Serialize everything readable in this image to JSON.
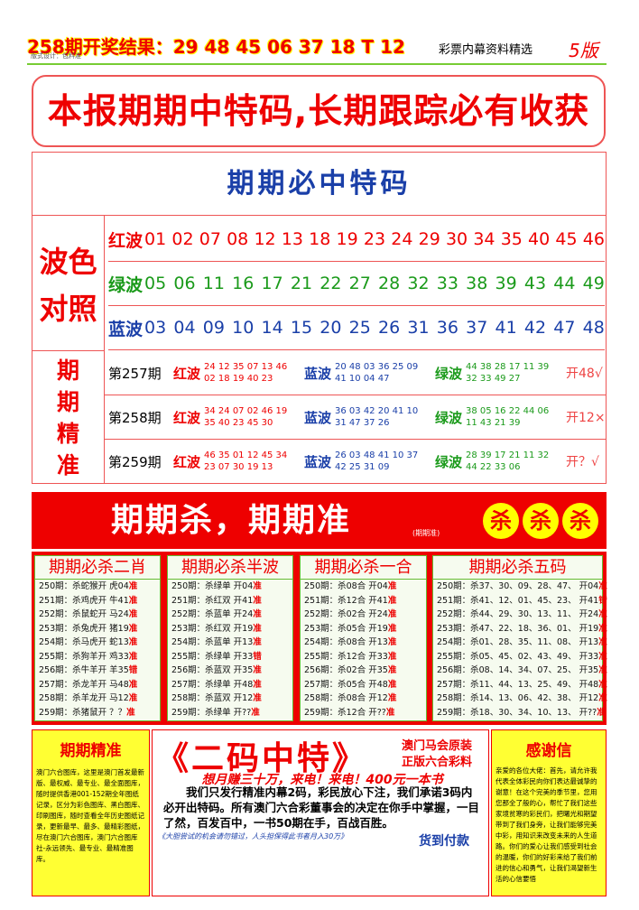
{
  "header": {
    "result": "258期开奖结果：29 48 45 06 37 18 T 12",
    "designer": "版式设计：包料准",
    "subtitle": "彩票内幕资料精选",
    "edition": "5版"
  },
  "banner": "本报期期中特码,长期跟踪必有收获",
  "special": {
    "title": "期期必中特码",
    "wave_label": "波色对照",
    "waves": [
      {
        "name": "红波",
        "numbers": [
          "01",
          "02",
          "07",
          "08",
          "12",
          "13",
          "18",
          "19",
          "23",
          "24",
          "29",
          "30",
          "34",
          "35",
          "40",
          "45",
          "46"
        ]
      },
      {
        "name": "绿波",
        "numbers": [
          "05",
          "06",
          "11",
          "16",
          "17",
          "21",
          "22",
          "27",
          "28",
          "32",
          "33",
          "38",
          "39",
          "43",
          "44",
          "49"
        ]
      },
      {
        "name": "蓝波",
        "numbers": [
          "03",
          "04",
          "09",
          "10",
          "14",
          "15",
          "20",
          "25",
          "26",
          "31",
          "36",
          "37",
          "41",
          "42",
          "47",
          "48"
        ]
      }
    ],
    "accurate_label": "期期精准",
    "periods": [
      {
        "period": "第257期",
        "groups": [
          {
            "name": "红波",
            "line1": "24 12 35 07 13 46",
            "line2": "02 18 19 40 23"
          },
          {
            "name": "蓝波",
            "line1": "20 48 03 36 25 09",
            "line2": "41 10 04 47"
          },
          {
            "name": "绿波",
            "line1": "44 38 28 17 11 39",
            "line2": "32 33 49 27"
          }
        ],
        "result": "开48√"
      },
      {
        "period": "第258期",
        "groups": [
          {
            "name": "红波",
            "line1": "34 24 07 02 46 19",
            "line2": "35 40 23 45 30"
          },
          {
            "name": "蓝波",
            "line1": "36 03 42 20 41 10",
            "line2": "31 47 37 26"
          },
          {
            "name": "绿波",
            "line1": "38 05 16 22 44 06",
            "line2": "11 43 21 39"
          }
        ],
        "result": "开12×"
      },
      {
        "period": "第259期",
        "groups": [
          {
            "name": "红波",
            "line1": "46 35 01 12 45 34",
            "line2": "23 07 30 19 13"
          },
          {
            "name": "蓝波",
            "line1": "26 03 48 41 10 37",
            "line2": "42 25 31 09"
          },
          {
            "name": "绿波",
            "line1": "28 39 17 21 11 32",
            "line2": "44 22 33 06"
          }
        ],
        "result": "开？√"
      }
    ]
  },
  "kill": {
    "title": "期期杀，期期准",
    "note": "(期期准)",
    "badges": [
      "杀",
      "杀",
      "杀"
    ]
  },
  "boxes": [
    {
      "title": "期期必杀二肖",
      "rows": [
        [
          "250期：杀蛇猴开 虎04",
          "准"
        ],
        [
          "251期：杀鸡虎开 牛41",
          "准"
        ],
        [
          "252期：杀鼠蛇开 马24",
          "准"
        ],
        [
          "253期：杀兔虎开 猪19",
          "准"
        ],
        [
          "254期：杀马虎开 蛇13",
          "准"
        ],
        [
          "255期：杀狗羊开 鸡33",
          "准"
        ],
        [
          "256期：杀牛羊开 羊35",
          "错"
        ],
        [
          "257期：杀龙羊开 马48",
          "准"
        ],
        [
          "258期：杀羊龙开 马12",
          "准"
        ],
        [
          "259期：杀猪鼠开 ？？",
          "准"
        ]
      ]
    },
    {
      "title": "期期必杀半波",
      "rows": [
        [
          "250期：杀绿单 开04",
          "准"
        ],
        [
          "251期：杀红双 开41",
          "准"
        ],
        [
          "252期：杀蓝单 开24",
          "准"
        ],
        [
          "253期：杀红双 开19",
          "准"
        ],
        [
          "254期：杀蓝单 开13",
          "准"
        ],
        [
          "255期：杀绿单 开33",
          "错"
        ],
        [
          "256期：杀蓝双 开35",
          "准"
        ],
        [
          "257期：杀绿单 开48",
          "准"
        ],
        [
          "258期：杀蓝双 开12",
          "准"
        ],
        [
          "259期：杀绿单 开??",
          "准"
        ]
      ]
    },
    {
      "title": "期期必杀一合",
      "rows": [
        [
          "250期：杀08合 开04",
          "准"
        ],
        [
          "251期：杀12合 开41",
          "准"
        ],
        [
          "252期：杀02合 开24",
          "准"
        ],
        [
          "253期：杀05合 开19",
          "准"
        ],
        [
          "254期：杀08合 开13",
          "准"
        ],
        [
          "255期：杀12合 开33",
          "准"
        ],
        [
          "256期：杀02合 开35",
          "准"
        ],
        [
          "257期：杀05合 开48",
          "准"
        ],
        [
          "258期：杀08合 开12",
          "准"
        ],
        [
          "259期：杀12合 开??",
          "准"
        ]
      ]
    },
    {
      "title": "期期必杀五码",
      "rows": [
        [
          "250期：杀37、30、09、28、47、 开04",
          "准"
        ],
        [
          "251期：杀41、12、01、45、23、 开41",
          "错"
        ],
        [
          "252期：杀44、29、30、13、11、 开24",
          "准"
        ],
        [
          "253期：杀47、22、18、36、01、 开19",
          "准"
        ],
        [
          "254期：杀01、28、35、11、08、 开13",
          "准"
        ],
        [
          "255期：杀05、45、02、43、49、 开33",
          "准"
        ],
        [
          "256期：杀08、14、34、07、25、 开35",
          "准"
        ],
        [
          "257期：杀11、44、13、25、49、 开48",
          "准"
        ],
        [
          "258期：杀14、13、06、42、38、 开12",
          "准"
        ],
        [
          "259期：杀18、30、34、10、13、 开??",
          "准"
        ]
      ]
    }
  ],
  "bottom": {
    "left": {
      "title": "期期精准",
      "text": "澳门六合图库，这里是澳门首发最新版、最权威、最专业、最全面图库，随时提供香港001-152期全年图纸记录，区分为彩色图库、黑白图库、印刷图库，随时查看全年历史图纸记录，更新最早、最多、最精彩图纸，尽在澳门六合图库，澳门六合图库社-永远领先、最专业、最精准图库。"
    },
    "middle": {
      "title": "《二码中特》",
      "tag1": "澳门马会原装",
      "tag2": "正版六合彩料",
      "slogan": "想月赚三十万，来电！来电！400元一本书",
      "text": "我们只发行精准内幕2码，彩民放心下注，我们承诺3码内必开出特码。所有澳门六合彩董事会的决定在你手中掌握，一目了然，百发百中，一书50期在手，百战百胜。",
      "footer": "《大胆尝试的机会请勿错过，人头担保得此书者月入30万》",
      "payment": "货到付款"
    },
    "right": {
      "title": "感谢信",
      "text": "亲爱的各位大佬：首先，请允许我代表全体彩民向你们表达最诚挚的谢意！在这个完美的季节里，您用您那全了般的心，帮忙了我们这些家境贫寒的彩民们，把曙光和期望带到了我们身旁，让我们能够完美中彩，用知识来改变未来的人生道路。你们的爱心让我们感受到社会的温暖，你们的好彩来给了我们前进的信心和勇气，让我们渴望新生活的心信要悟"
    }
  }
}
